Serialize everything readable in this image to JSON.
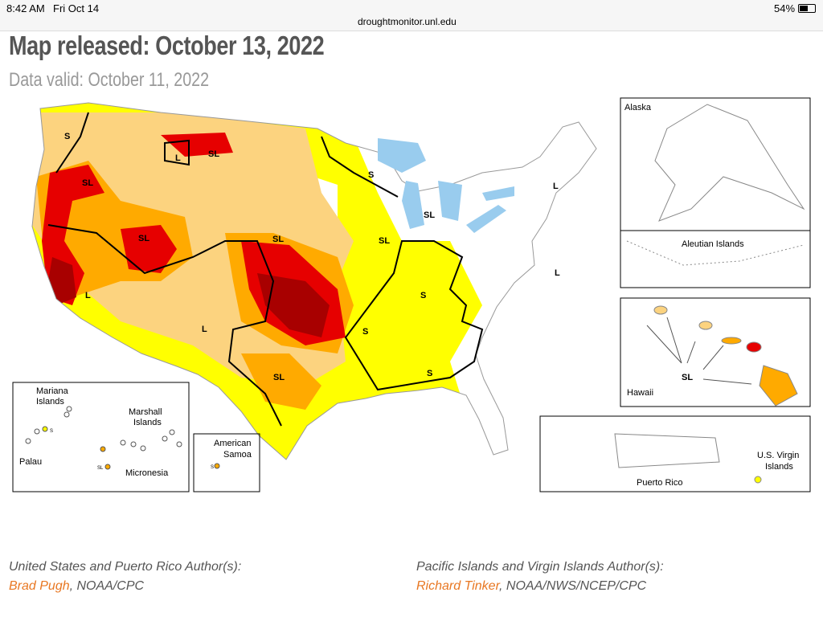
{
  "status_bar": {
    "time": "8:42 AM",
    "date": "Fri Oct 14",
    "url": "droughtmonitor.unl.edu",
    "battery": "54%"
  },
  "header": {
    "title": "Map released: October 13, 2022",
    "subtitle": "Data valid: October 11, 2022"
  },
  "map": {
    "impact_labels": [
      "S",
      "SL",
      "L",
      "SL",
      "S",
      "L",
      "SL",
      "SL",
      "SL",
      "SL",
      "L",
      "L",
      "L",
      "S",
      "S",
      "S",
      "SL",
      "SL",
      "S",
      "SL",
      "S"
    ],
    "regions": {
      "alaska": "Alaska",
      "aleutian": "Aleutian Islands",
      "hawaii": "Hawaii",
      "mariana": [
        "Mariana",
        "Islands"
      ],
      "marshall": [
        "Marshall",
        "Islands"
      ],
      "palau": "Palau",
      "micronesia": "Micronesia",
      "samoa": [
        "American",
        "Samoa"
      ],
      "puerto_rico": "Puerto Rico",
      "virgin_islands": [
        "U.S. Virgin",
        "Islands"
      ]
    }
  },
  "authors": [
    {
      "heading": "United States and Puerto Rico Author(s):",
      "name": "Brad Pugh",
      "affiliation": ", NOAA/CPC"
    },
    {
      "heading": "Pacific Islands and Virgin Islands Author(s):",
      "name": "Richard Tinker",
      "affiliation": ", NOAA/NWS/NCEP/CPC"
    }
  ]
}
